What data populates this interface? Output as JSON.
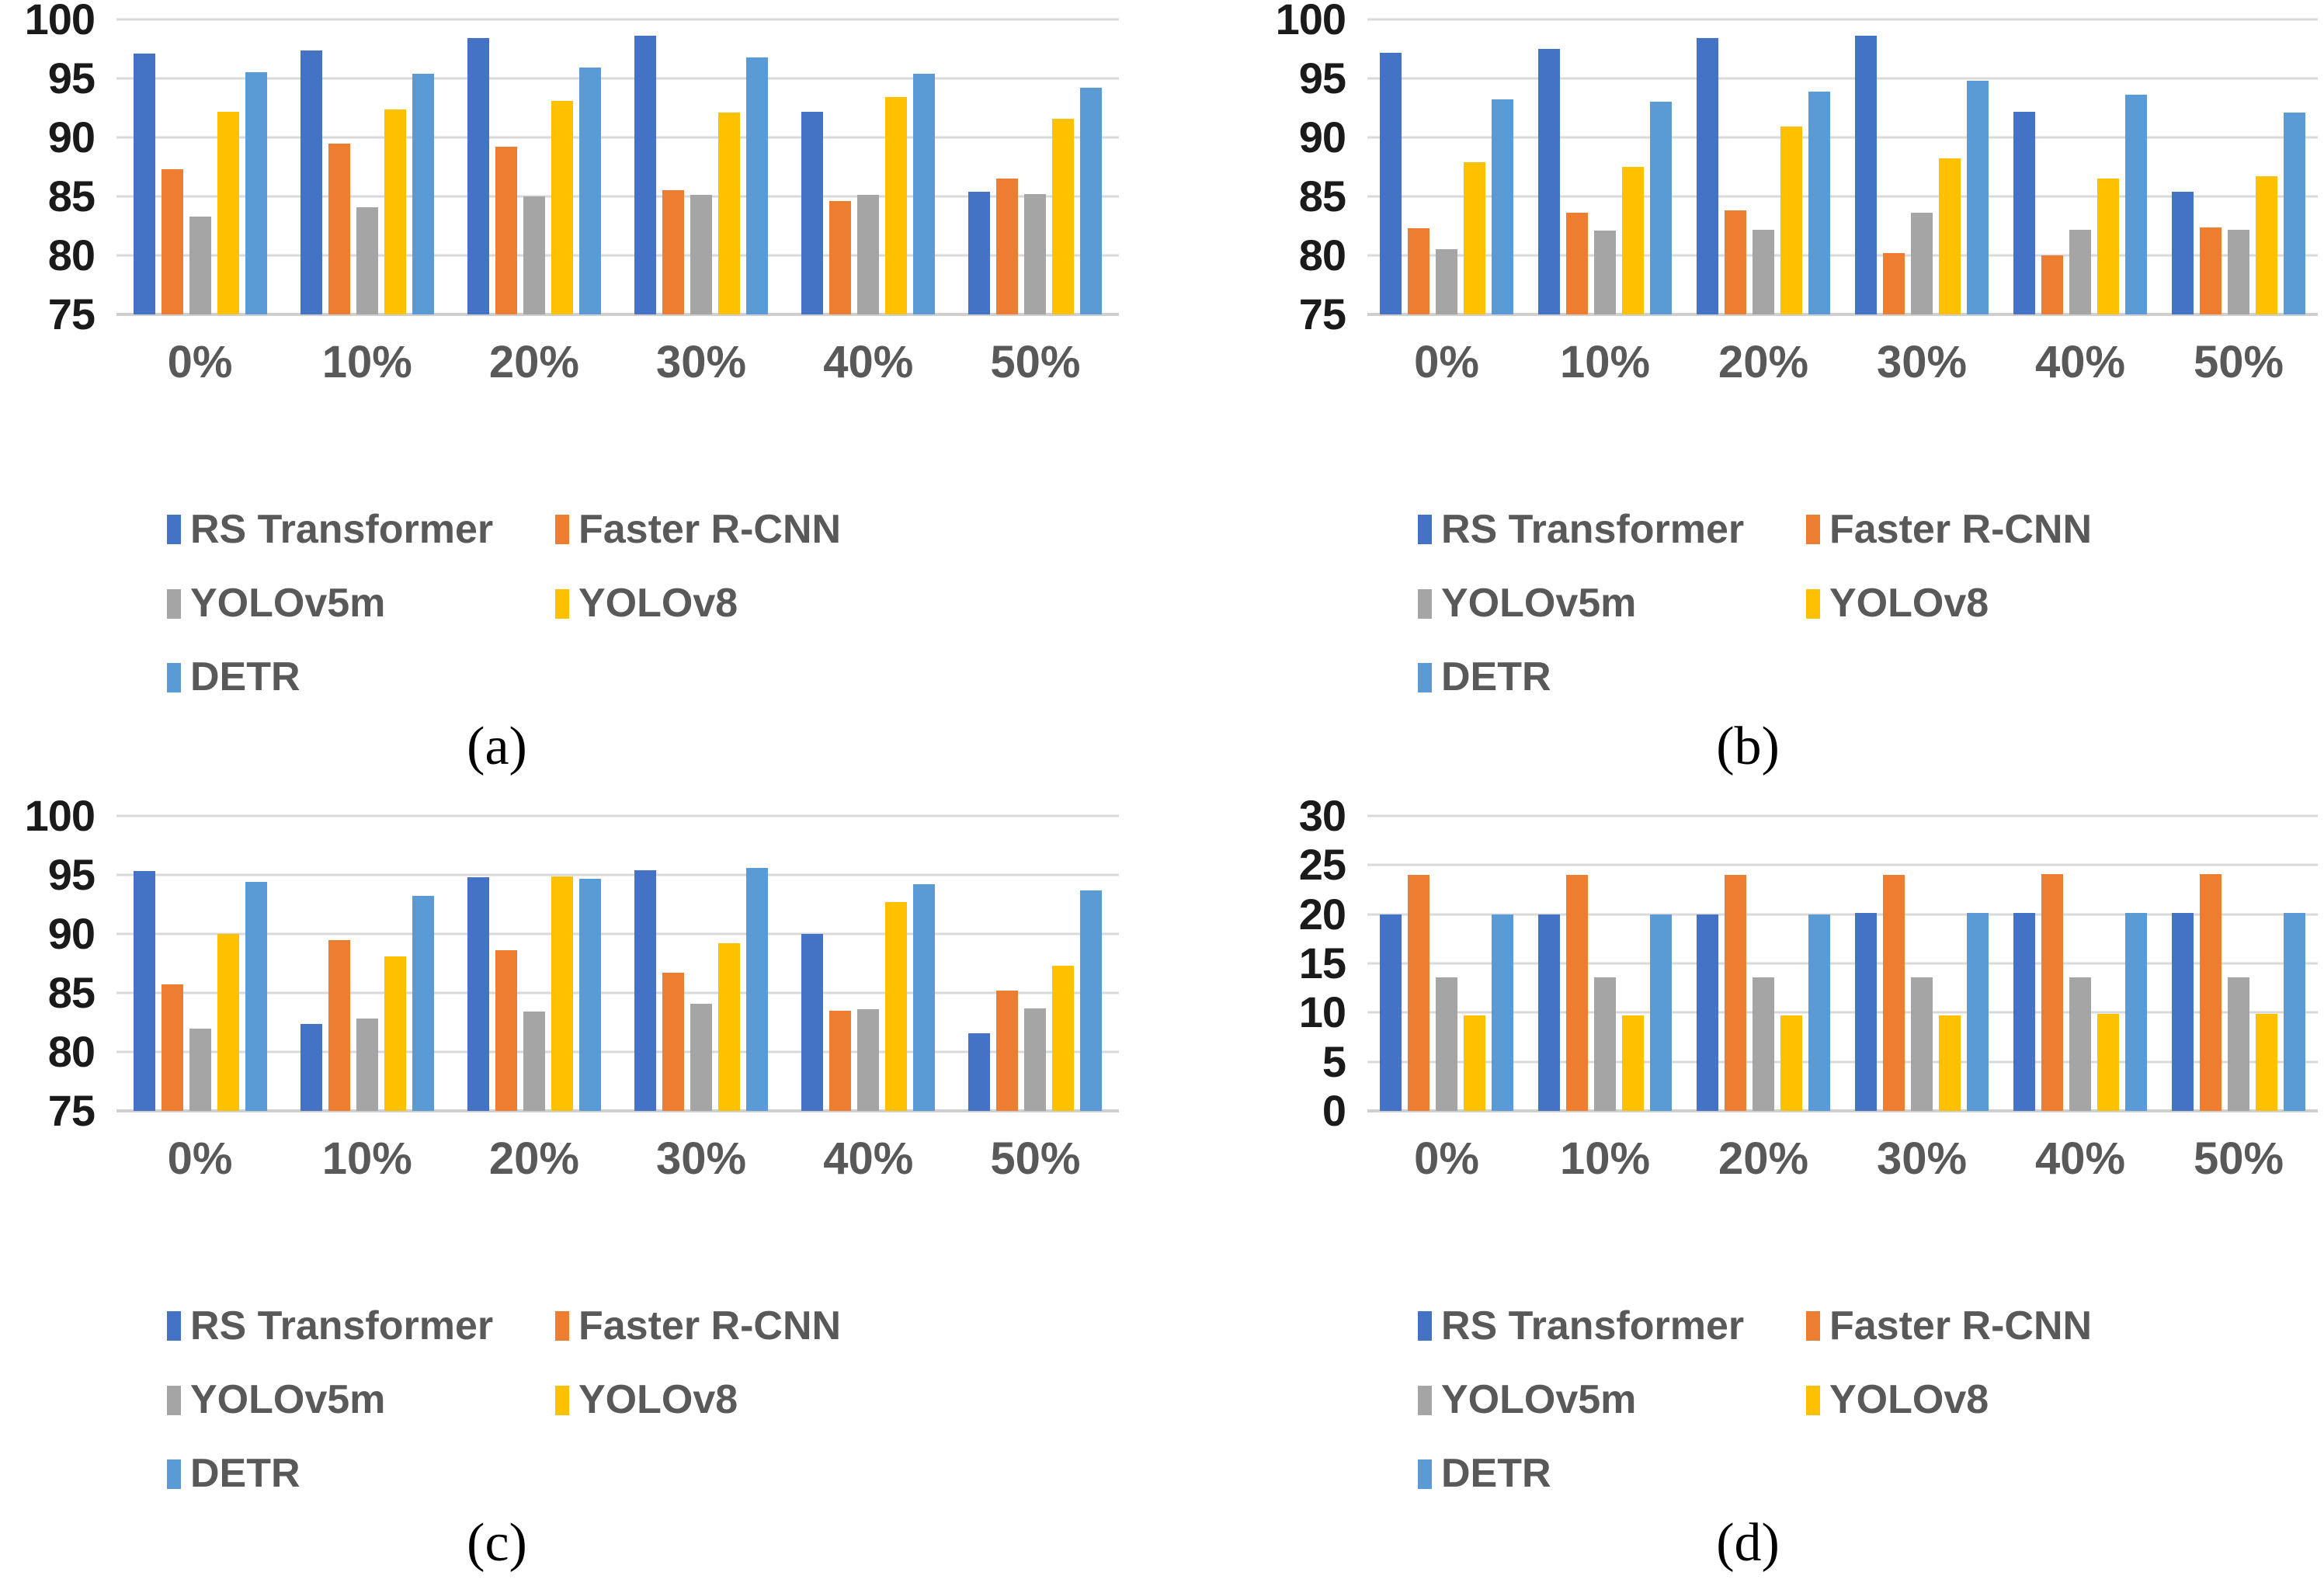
{
  "palette": {
    "background": "#FFFFFF",
    "gridline": "#D9D9D9",
    "baseline": "#CFCFCF",
    "y_tick_text": "#1A1A1A",
    "x_tick_text": "#595959",
    "legend_text": "#595959",
    "series_colors": {
      "RS Transformer": "#4472C4",
      "Faster R-CNN": "#ED7D31",
      "YOLOv5m": "#A5A5A5",
      "YOLOv8": "#FFC000",
      "DETR": "#5B9BD5"
    }
  },
  "legend": {
    "items": [
      "RS Transformer",
      "Faster R-CNN",
      "YOLOv5m",
      "YOLOv8",
      "DETR"
    ],
    "columns": 2,
    "position": "bottom"
  },
  "chart_data": [
    {
      "caption": "(a)",
      "type": "bar",
      "ymin": 75,
      "ymax": 100,
      "yticks": [
        100,
        95,
        90,
        85,
        80,
        75
      ],
      "grid": true,
      "legend_position": "bottom",
      "categories": [
        "0%",
        "10%",
        "20%",
        "30%",
        "40%",
        "50%"
      ],
      "series": [
        {
          "name": "RS Transformer",
          "color": "#4472C4",
          "values": [
            97.1,
            97.4,
            98.4,
            98.6,
            92.2,
            85.4
          ]
        },
        {
          "name": "Faster R-CNN",
          "color": "#ED7D31",
          "values": [
            87.3,
            89.5,
            89.2,
            85.5,
            84.6,
            86.5
          ]
        },
        {
          "name": "YOLOv5m",
          "color": "#A5A5A5",
          "values": [
            83.3,
            84.1,
            85.0,
            85.1,
            85.1,
            85.2
          ]
        },
        {
          "name": "YOLOv8",
          "color": "#FFC000",
          "values": [
            92.2,
            92.4,
            93.1,
            92.1,
            93.4,
            91.6
          ]
        },
        {
          "name": "DETR",
          "color": "#5B9BD5",
          "values": [
            95.5,
            95.4,
            95.9,
            96.8,
            95.4,
            94.2
          ]
        }
      ]
    },
    {
      "caption": "(b)",
      "type": "bar",
      "ymin": 75,
      "ymax": 100,
      "yticks": [
        100,
        95,
        90,
        85,
        80,
        75
      ],
      "grid": true,
      "legend_position": "bottom",
      "categories": [
        "0%",
        "10%",
        "20%",
        "30%",
        "40%",
        "50%"
      ],
      "series": [
        {
          "name": "RS Transformer",
          "color": "#4472C4",
          "values": [
            97.2,
            97.5,
            98.4,
            98.6,
            92.2,
            85.4
          ]
        },
        {
          "name": "Faster R-CNN",
          "color": "#ED7D31",
          "values": [
            82.3,
            83.6,
            83.8,
            80.2,
            80.0,
            82.4
          ]
        },
        {
          "name": "YOLOv5m",
          "color": "#A5A5A5",
          "values": [
            80.5,
            82.1,
            82.2,
            83.6,
            82.2,
            82.2
          ]
        },
        {
          "name": "YOLOv8",
          "color": "#FFC000",
          "values": [
            87.9,
            87.5,
            90.9,
            88.2,
            86.5,
            86.7
          ]
        },
        {
          "name": "DETR",
          "color": "#5B9BD5",
          "values": [
            93.2,
            93.0,
            93.9,
            94.8,
            93.6,
            92.1
          ]
        }
      ]
    },
    {
      "caption": "(c)",
      "type": "bar",
      "ymin": 75,
      "ymax": 100,
      "yticks": [
        100,
        95,
        90,
        85,
        80,
        75
      ],
      "grid": true,
      "legend_position": "bottom",
      "categories": [
        "0%",
        "10%",
        "20%",
        "30%",
        "40%",
        "50%"
      ],
      "series": [
        {
          "name": "RS Transformer",
          "color": "#4472C4",
          "values": [
            95.3,
            82.4,
            94.8,
            95.4,
            90.0,
            81.6
          ]
        },
        {
          "name": "Faster R-CNN",
          "color": "#ED7D31",
          "values": [
            85.7,
            89.5,
            88.6,
            86.7,
            83.5,
            85.2
          ]
        },
        {
          "name": "YOLOv5m",
          "color": "#A5A5A5",
          "values": [
            82.0,
            82.8,
            83.4,
            84.1,
            83.6,
            83.7
          ]
        },
        {
          "name": "YOLOv8",
          "color": "#FFC000",
          "values": [
            90.0,
            88.1,
            94.9,
            89.2,
            92.7,
            87.3
          ]
        },
        {
          "name": "DETR",
          "color": "#5B9BD5",
          "values": [
            94.4,
            93.2,
            94.7,
            95.6,
            94.2,
            93.7
          ]
        }
      ]
    },
    {
      "caption": "(d)",
      "type": "bar",
      "ymin": 0,
      "ymax": 30,
      "yticks": [
        30,
        25,
        20,
        15,
        10,
        5,
        0
      ],
      "grid": true,
      "legend_position": "bottom",
      "categories": [
        "0%",
        "10%",
        "20%",
        "30%",
        "40%",
        "50%"
      ],
      "series": [
        {
          "name": "RS Transformer",
          "color": "#4472C4",
          "values": [
            20.0,
            20.0,
            20.0,
            20.1,
            20.1,
            20.1
          ]
        },
        {
          "name": "Faster R-CNN",
          "color": "#ED7D31",
          "values": [
            24.0,
            24.0,
            24.0,
            24.0,
            24.1,
            24.1
          ]
        },
        {
          "name": "YOLOv5m",
          "color": "#A5A5A5",
          "values": [
            13.6,
            13.6,
            13.6,
            13.6,
            13.6,
            13.6
          ]
        },
        {
          "name": "YOLOv8",
          "color": "#FFC000",
          "values": [
            9.7,
            9.7,
            9.7,
            9.7,
            9.9,
            9.9
          ]
        },
        {
          "name": "DETR",
          "color": "#5B9BD5",
          "values": [
            20.0,
            20.0,
            20.0,
            20.1,
            20.1,
            20.1
          ]
        }
      ]
    }
  ]
}
